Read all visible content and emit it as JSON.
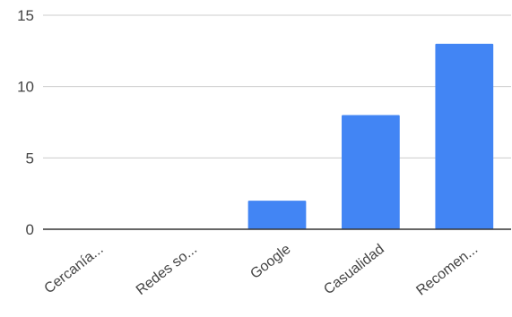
{
  "chart_data": {
    "type": "bar",
    "title": "",
    "xlabel": "",
    "ylabel": "",
    "categories": [
      "Cercanía...",
      "Redes so...",
      "Google",
      "Casualidad",
      "Recomen..."
    ],
    "values": [
      0,
      0,
      2,
      8,
      13
    ],
    "ylim": [
      0,
      15
    ],
    "yticks": [
      "0",
      "5",
      "10",
      "15"
    ],
    "grid": true,
    "legend": "none",
    "colors": {
      "bar": "#4285f4",
      "grid": "#cccccc",
      "axis": "#333333",
      "text": "#444444"
    }
  }
}
